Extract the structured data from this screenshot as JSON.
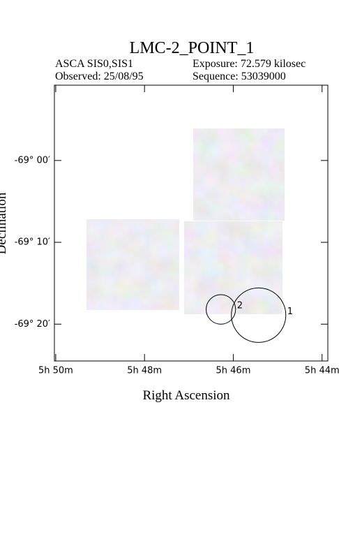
{
  "chart_data": {
    "type": "sky-image",
    "title": "LMC-2_POINT_1",
    "instrument": "ASCA SIS0,SIS1",
    "exposure": "Exposure: 72.579 kilosec",
    "observed": "Observed: 25/08/95",
    "sequence": "Sequence: 53039000",
    "x_label": "Right Ascension",
    "y_label": "Declination",
    "xlim": [
      350.03,
      343.87
    ],
    "ylim": [
      -4164.5,
      -4130.8
    ],
    "xticks": [
      {
        "value": 350,
        "label": "5h 50m"
      },
      {
        "value": 348,
        "label": "5h 48m"
      },
      {
        "value": 346,
        "label": "5h 46m"
      },
      {
        "value": 344,
        "label": "5h 44m"
      }
    ],
    "yticks": [
      {
        "value": -4140,
        "label": "-69° 00′"
      },
      {
        "value": -4150,
        "label": "-69° 10′"
      },
      {
        "value": -4160,
        "label": "-69° 20′"
      }
    ],
    "sources": [
      {
        "label": "1",
        "ra": 345.43,
        "dec": -4158.9,
        "radius": 3.33
      },
      {
        "label": "2",
        "ra": 346.28,
        "dec": -4158.2,
        "radius": 1.8
      }
    ]
  }
}
